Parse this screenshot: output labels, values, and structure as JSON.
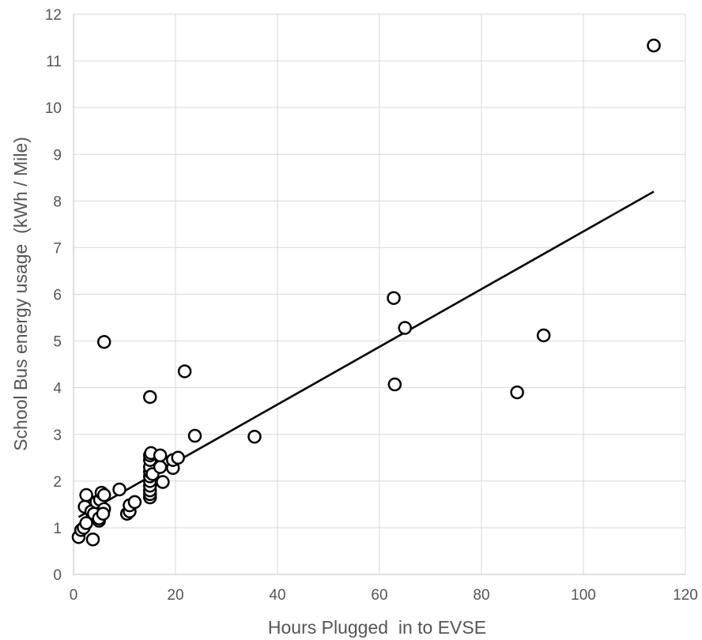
{
  "chart_data": {
    "type": "scatter",
    "title": "",
    "xlabel": "Hours Plugged  in to EVSE",
    "ylabel": "School Bus energy usage  (kWh / Mile)",
    "xlim": [
      0,
      120
    ],
    "ylim": [
      0,
      12
    ],
    "x_ticks": [
      "0",
      "20",
      "40",
      "60",
      "80",
      "100",
      "120"
    ],
    "y_ticks": [
      "0",
      "1",
      "2",
      "3",
      "4",
      "5",
      "6",
      "7",
      "8",
      "9",
      "10",
      "11",
      "12"
    ],
    "grid": true,
    "legend": "none",
    "marker_fill": "#ffffff",
    "marker_edge": "#000000",
    "trendline_color": "#000000",
    "grid_color": "#d9d9d9",
    "points": [
      [
        1.0,
        0.8
      ],
      [
        1.5,
        0.95
      ],
      [
        2.0,
        1.0
      ],
      [
        2.5,
        1.1
      ],
      [
        2.2,
        1.45
      ],
      [
        2.5,
        1.7
      ],
      [
        3.5,
        1.35
      ],
      [
        3.8,
        0.75
      ],
      [
        4.0,
        1.3
      ],
      [
        4.5,
        1.55
      ],
      [
        5.0,
        1.15
      ],
      [
        5.0,
        1.2
      ],
      [
        5.2,
        1.6
      ],
      [
        5.5,
        1.75
      ],
      [
        6.0,
        1.7
      ],
      [
        6.0,
        1.4
      ],
      [
        5.8,
        1.3
      ],
      [
        6.0,
        4.98
      ],
      [
        9.0,
        1.82
      ],
      [
        10.5,
        1.3
      ],
      [
        11.0,
        1.35
      ],
      [
        11.0,
        1.48
      ],
      [
        12.0,
        1.55
      ],
      [
        15.0,
        1.65
      ],
      [
        15.0,
        1.72
      ],
      [
        15.0,
        1.8
      ],
      [
        15.0,
        1.9
      ],
      [
        15.0,
        2.0
      ],
      [
        15.0,
        2.1
      ],
      [
        15.0,
        2.2
      ],
      [
        15.0,
        2.3
      ],
      [
        15.0,
        2.45
      ],
      [
        15.0,
        2.55
      ],
      [
        15.2,
        2.6
      ],
      [
        15.5,
        2.15
      ],
      [
        15.0,
        3.8
      ],
      [
        17.0,
        2.3
      ],
      [
        17.0,
        2.55
      ],
      [
        17.5,
        1.98
      ],
      [
        19.5,
        2.28
      ],
      [
        19.5,
        2.45
      ],
      [
        20.5,
        2.5
      ],
      [
        21.8,
        4.35
      ],
      [
        23.8,
        2.97
      ],
      [
        35.5,
        2.95
      ],
      [
        62.8,
        5.92
      ],
      [
        63.0,
        4.07
      ],
      [
        65.0,
        5.28
      ],
      [
        87.0,
        3.9
      ],
      [
        92.2,
        5.12
      ],
      [
        113.8,
        11.33
      ]
    ],
    "trendline": {
      "x": [
        1.0,
        113.8
      ],
      "y": [
        1.23,
        8.2
      ]
    }
  }
}
